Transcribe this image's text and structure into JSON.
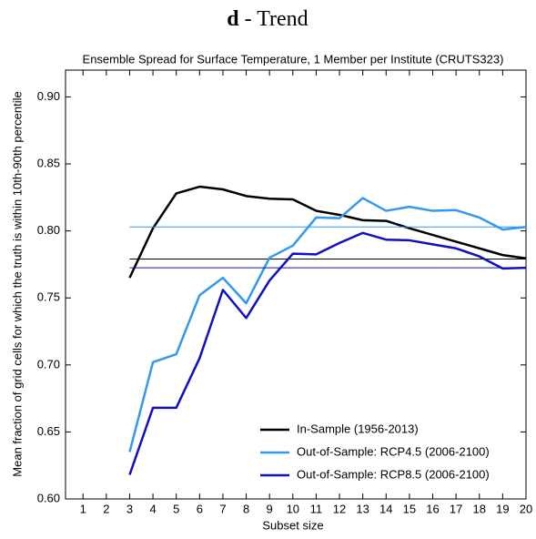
{
  "chart_data": {
    "type": "line",
    "panel": "d",
    "title": "- Trend",
    "subtitle": "Ensemble Spread for Surface Temperature, 1 Member per Institute (CRUTS323)",
    "xlabel": "Subset size",
    "ylabel": "Mean fraction of grid cells for which the truth is within 10th-90th percentile",
    "x": [
      3,
      4,
      5,
      6,
      7,
      8,
      9,
      10,
      11,
      12,
      13,
      14,
      15,
      16,
      17,
      18,
      19,
      20
    ],
    "series": [
      {
        "name": "In-Sample (1956-2013)",
        "color": "#000000",
        "reference": 0.779,
        "values": [
          0.765,
          0.802,
          0.828,
          0.833,
          0.831,
          0.826,
          0.824,
          0.8235,
          0.815,
          0.812,
          0.808,
          0.8075,
          0.802,
          0.797,
          0.792,
          0.787,
          0.782,
          0.7795
        ]
      },
      {
        "name": "Out-of-Sample: RCP4.5 (2006-2100)",
        "color": "#3399ee",
        "reference": 0.803,
        "values": [
          0.635,
          0.702,
          0.708,
          0.752,
          0.765,
          0.746,
          0.78,
          0.789,
          0.81,
          0.8095,
          0.8245,
          0.815,
          0.818,
          0.815,
          0.8155,
          0.81,
          0.801,
          0.803
        ]
      },
      {
        "name": "Out-of-Sample: RCP8.5 (2006-2100)",
        "color": "#1010c0",
        "reference": 0.7725,
        "values": [
          0.618,
          0.668,
          0.668,
          0.705,
          0.756,
          0.735,
          0.763,
          0.783,
          0.7825,
          0.791,
          0.7985,
          0.7935,
          0.793,
          0.79,
          0.787,
          0.781,
          0.772,
          0.7725
        ]
      }
    ],
    "xlim": [
      0.25,
      20
    ],
    "xticks": [
      1,
      2,
      3,
      4,
      5,
      6,
      7,
      8,
      9,
      10,
      11,
      12,
      13,
      14,
      15,
      16,
      17,
      18,
      19,
      20
    ],
    "ylim": [
      0.6,
      0.92
    ],
    "yticks": [
      {
        "value": 0.6,
        "label": "0.60"
      },
      {
        "value": 0.65,
        "label": "0.65"
      },
      {
        "value": 0.7,
        "label": "0.70"
      },
      {
        "value": 0.75,
        "label": "0.75"
      },
      {
        "value": 0.8,
        "label": "0.80"
      },
      {
        "value": 0.85,
        "label": "0.85"
      },
      {
        "value": 0.9,
        "label": "0.90"
      }
    ],
    "legend": "lower right"
  }
}
